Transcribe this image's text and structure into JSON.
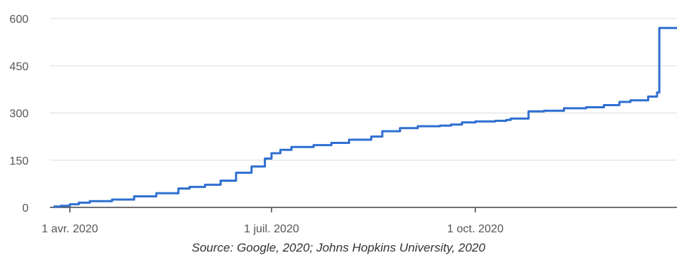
{
  "chart_data": {
    "type": "line",
    "title": "",
    "xlabel": "",
    "ylabel": "",
    "ylim": [
      0,
      600
    ],
    "xlim": [
      "2020-03-23",
      "2020-12-31"
    ],
    "y_ticks": [
      0,
      150,
      300,
      450,
      600
    ],
    "y_tick_labels": [
      "0",
      "150",
      "300",
      "450",
      "600"
    ],
    "x_ticks": [
      "2020-04-01",
      "2020-07-01",
      "2020-10-01"
    ],
    "x_tick_labels": [
      "1 avr. 2020",
      "1 juil. 2020",
      "1 oct. 2020"
    ],
    "grid": "horizontal",
    "legend": "none",
    "series": [
      {
        "color": "#2f6fd1",
        "x": [
          "2020-03-25",
          "2020-03-28",
          "2020-04-01",
          "2020-04-05",
          "2020-04-10",
          "2020-04-20",
          "2020-04-30",
          "2020-05-10",
          "2020-05-20",
          "2020-05-25",
          "2020-06-01",
          "2020-06-08",
          "2020-06-15",
          "2020-06-22",
          "2020-06-28",
          "2020-07-01",
          "2020-07-05",
          "2020-07-10",
          "2020-07-20",
          "2020-07-28",
          "2020-08-05",
          "2020-08-15",
          "2020-08-20",
          "2020-08-28",
          "2020-09-05",
          "2020-09-15",
          "2020-09-20",
          "2020-09-25",
          "2020-10-01",
          "2020-10-10",
          "2020-10-15",
          "2020-10-17",
          "2020-10-25",
          "2020-11-01",
          "2020-11-10",
          "2020-11-20",
          "2020-11-28",
          "2020-12-05",
          "2020-12-10",
          "2020-12-18",
          "2020-12-22",
          "2020-12-23",
          "2020-12-31"
        ],
        "y": [
          3,
          5,
          10,
          15,
          20,
          25,
          35,
          45,
          60,
          65,
          72,
          85,
          110,
          130,
          155,
          172,
          183,
          192,
          198,
          205,
          215,
          225,
          242,
          252,
          258,
          260,
          263,
          270,
          273,
          275,
          278,
          282,
          305,
          307,
          315,
          318,
          325,
          335,
          340,
          352,
          365,
          570,
          570
        ]
      }
    ]
  },
  "caption": "Source: Google, 2020; Johns Hopkins University, 2020"
}
